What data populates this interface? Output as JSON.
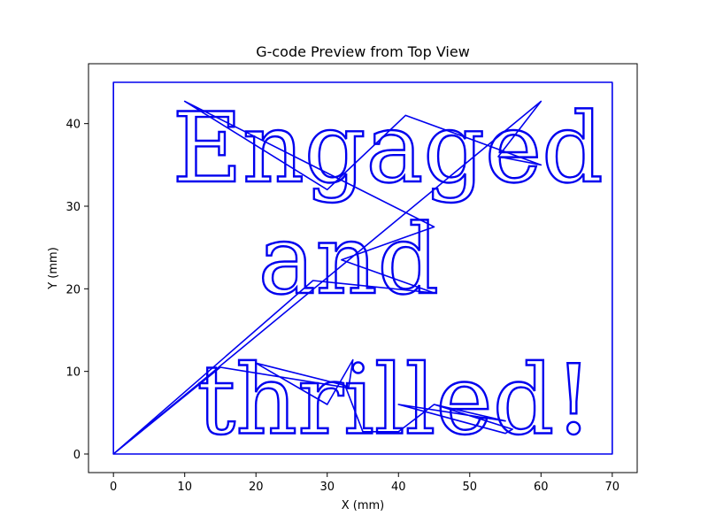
{
  "chart_data": {
    "type": "line",
    "title": "G-code Preview from Top View",
    "xlabel": "X (mm)",
    "ylabel": "Y (mm)",
    "xlim": [
      -3.5,
      73.5
    ],
    "ylim": [
      -2.25,
      47.25
    ],
    "xticks": [
      0,
      10,
      20,
      30,
      40,
      50,
      60,
      70
    ],
    "yticks": [
      0,
      10,
      20,
      30,
      40
    ],
    "grid": false,
    "line_color": "#0000ee",
    "series": [
      {
        "points": [
          [
            0,
            0
          ],
          [
            70,
            0
          ],
          [
            70,
            45
          ],
          [
            0,
            45
          ],
          [
            0,
            0
          ]
        ]
      },
      {
        "points": [
          [
            0,
            0
          ],
          [
            60,
            42.7
          ],
          [
            54,
            36
          ],
          [
            60,
            35
          ],
          [
            41,
            41
          ],
          [
            30,
            32
          ],
          [
            10,
            42.7
          ],
          [
            45,
            27.5
          ],
          [
            32,
            23.5
          ],
          [
            45,
            19.5
          ],
          [
            28,
            21
          ],
          [
            0,
            0
          ],
          [
            15,
            10.5
          ],
          [
            33,
            8
          ],
          [
            33.6,
            11.4
          ],
          [
            30,
            6
          ],
          [
            20,
            11
          ],
          [
            32.5,
            8.3
          ],
          [
            35,
            2.7
          ],
          [
            40,
            2.7
          ],
          [
            45,
            6
          ],
          [
            56,
            3
          ],
          [
            55,
            2.5
          ],
          [
            40,
            6
          ],
          [
            55,
            4
          ],
          [
            45,
            6
          ]
        ]
      }
    ],
    "text_lines": [
      {
        "text": "Engaged",
        "x": 38.5,
        "y": 33
      },
      {
        "text": "and",
        "x": 33,
        "y": 19.5
      },
      {
        "text": "thrilled!",
        "x": 39.5,
        "y": 2.5
      }
    ]
  }
}
